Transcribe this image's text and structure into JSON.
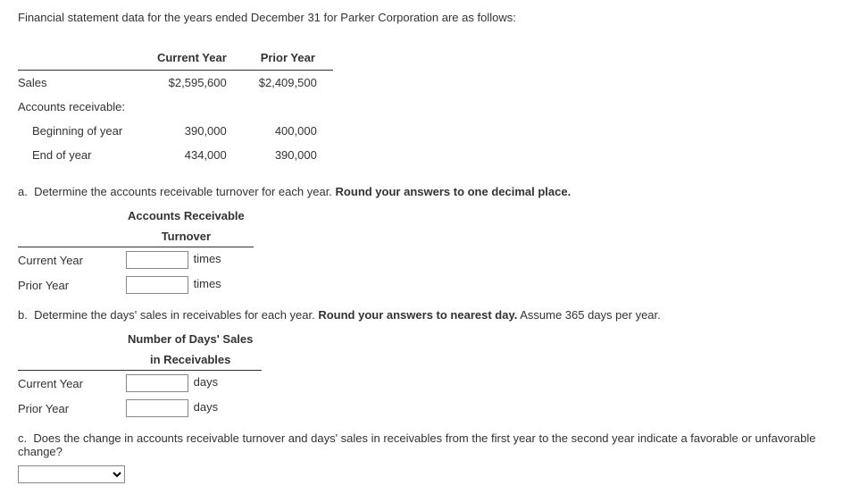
{
  "intro": "Financial statement data for the years ended December 31 for Parker Corporation are as follows:",
  "data_table": {
    "col_headers": {
      "current": "Current Year",
      "prior": "Prior Year"
    },
    "rows": {
      "sales": {
        "label": "Sales",
        "current": "$2,595,600",
        "prior": "$2,409,500"
      },
      "ar_heading": {
        "label": "Accounts receivable:"
      },
      "begin": {
        "label": "Beginning of year",
        "current": "390,000",
        "prior": "400,000"
      },
      "end": {
        "label": "End of year",
        "current": "434,000",
        "prior": "390,000"
      }
    }
  },
  "q_a": {
    "letter": "a.",
    "text": "Determine the accounts receivable turnover for each year. ",
    "bold": "Round your answers to one decimal place.",
    "header_l1": "Accounts Receivable",
    "header_l2": "Turnover",
    "row_current": "Current Year",
    "row_prior": "Prior Year",
    "unit": "times"
  },
  "q_b": {
    "letter": "b.",
    "text": "Determine the days' sales in receivables for each year. ",
    "bold": "Round your answers to nearest day.",
    "trail": " Assume 365 days per year.",
    "header_l1": "Number of Days' Sales",
    "header_l2": "in Receivables",
    "row_current": "Current Year",
    "row_prior": "Prior Year",
    "unit": "days"
  },
  "q_c": {
    "letter": "c.",
    "text": "Does the change in accounts receivable turnover and days' sales in receivables from the first year to the second year indicate a favorable or unfavorable change?"
  }
}
